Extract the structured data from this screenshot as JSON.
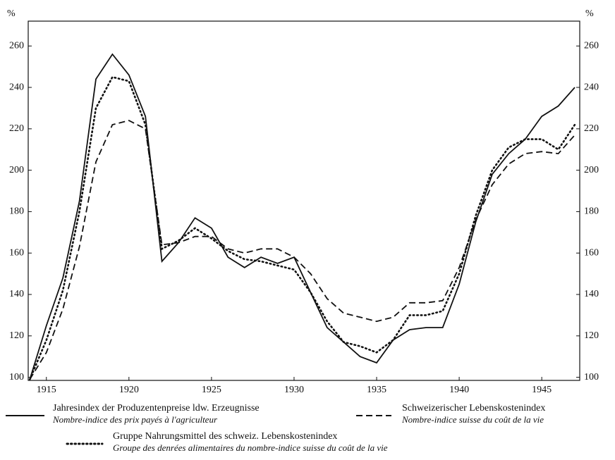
{
  "chart_data": {
    "type": "line",
    "y_unit": "%",
    "x": [
      1914,
      1915,
      1916,
      1917,
      1918,
      1919,
      1920,
      1921,
      1922,
      1923,
      1924,
      1925,
      1926,
      1927,
      1928,
      1929,
      1930,
      1931,
      1932,
      1933,
      1934,
      1935,
      1936,
      1937,
      1938,
      1939,
      1940,
      1941,
      1942,
      1943,
      1944,
      1945,
      1946,
      1947
    ],
    "series": [
      {
        "name": "Jahresindex der Produzentenpreise ldw. Erzeugnisse",
        "name_fr": "Nombre-indice des prix payés à l'agriculteur",
        "color": "#111111",
        "dash": "solid",
        "values": [
          99,
          125,
          148,
          185,
          244,
          256,
          246,
          226,
          156,
          165,
          177,
          172,
          158,
          153,
          158,
          155,
          158,
          141,
          124,
          117,
          110,
          107,
          118,
          123,
          124,
          124,
          145,
          175,
          198,
          208,
          215,
          226,
          231,
          240
        ]
      },
      {
        "name": "Schweizerischer Lebenskostenindex",
        "name_fr": "Nombre-indice suisse du coût de la vie",
        "color": "#111111",
        "dash": "dashed",
        "values": [
          99,
          112,
          133,
          163,
          204,
          222,
          224,
          220,
          164,
          165,
          168,
          168,
          162,
          160,
          162,
          162,
          158,
          150,
          138,
          131,
          129,
          127,
          129,
          136,
          136,
          137,
          153,
          176,
          193,
          203,
          208,
          209,
          208,
          217
        ]
      },
      {
        "name": "Gruppe Nahrungsmittel des schweiz. Lebenskostenindex",
        "name_fr": "Groupe des denrées alimentaires du nombre-indice suisse du coût de la vie",
        "color": "#111111",
        "dash": "dotted",
        "values": [
          99,
          118,
          142,
          180,
          230,
          245,
          243,
          222,
          162,
          166,
          172,
          167,
          161,
          157,
          156,
          154,
          152,
          141,
          127,
          117,
          115,
          112,
          118,
          130,
          130,
          132,
          150,
          178,
          200,
          211,
          215,
          215,
          210,
          222
        ]
      }
    ],
    "xlim": [
      1913.9,
      1947.3
    ],
    "xticks": [
      1915,
      1920,
      1925,
      1930,
      1935,
      1940,
      1945
    ],
    "ylim": [
      98.5,
      272
    ],
    "yticks": [
      100,
      120,
      140,
      160,
      180,
      200,
      220,
      240,
      260
    ],
    "right_axis_labels": true
  }
}
